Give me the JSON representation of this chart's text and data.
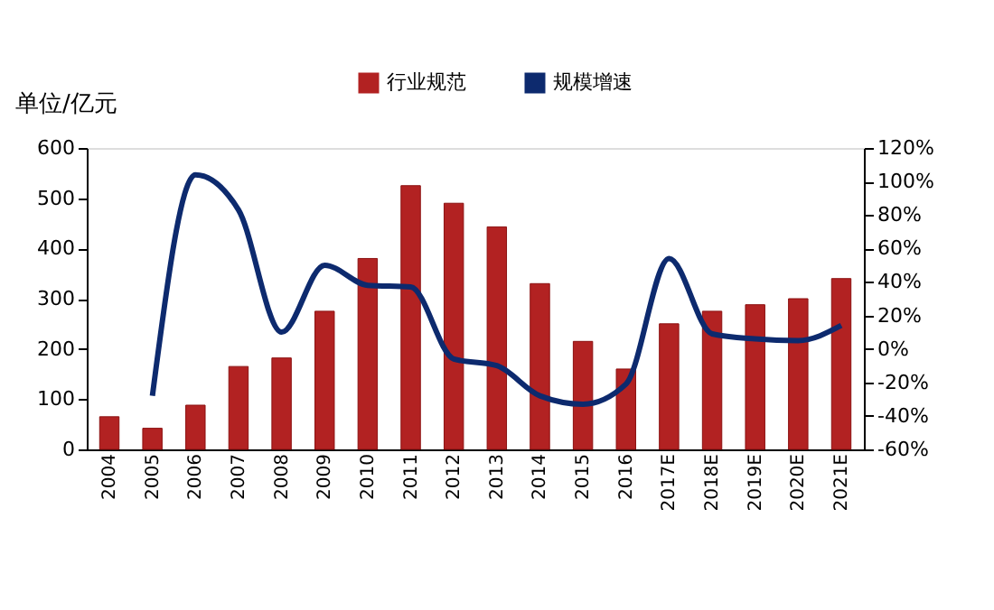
{
  "chart_data": {
    "type": "bar",
    "ylabel": "单位/亿元",
    "legend": "top",
    "categories": [
      "2004",
      "2005",
      "2006",
      "2007",
      "2008",
      "2009",
      "2010",
      "2011",
      "2012",
      "2013",
      "2014",
      "2015",
      "2016",
      "2017E",
      "2018E",
      "2019E",
      "2020E",
      "2021E"
    ],
    "series": [
      {
        "name": "行业规范",
        "color": "#b22222",
        "values": [
          65,
          42,
          88,
          165,
          182,
          275,
          380,
          525,
          490,
          443,
          330,
          215,
          160,
          250,
          275,
          288,
          300,
          340
        ]
      },
      {
        "name": "规模增速",
        "color": "#0d2a6e",
        "type": "line",
        "axis": "y2",
        "values": [
          null,
          -28,
          104,
          83,
          10,
          50,
          38,
          37,
          -6,
          -10,
          -28,
          -33,
          -21,
          54,
          9,
          6,
          5,
          14
        ]
      }
    ],
    "ylim": [
      0,
      600
    ],
    "yticks": [
      0,
      100,
      200,
      300,
      400,
      500,
      600
    ],
    "y2lim": [
      -60,
      120
    ],
    "y2ticks": [
      {
        "value": -60,
        "label": "-60%"
      },
      {
        "value": -40,
        "label": "-40%"
      },
      {
        "value": -20,
        "label": "-20%"
      },
      {
        "value": 0,
        "label": "0%"
      },
      {
        "value": 20,
        "label": "20%"
      },
      {
        "value": 40,
        "label": "40%"
      },
      {
        "value": 60,
        "label": "60%"
      },
      {
        "value": 80,
        "label": "80%"
      },
      {
        "value": 100,
        "label": "100%"
      },
      {
        "value": 120,
        "label": "120%"
      }
    ],
    "grid": false
  }
}
